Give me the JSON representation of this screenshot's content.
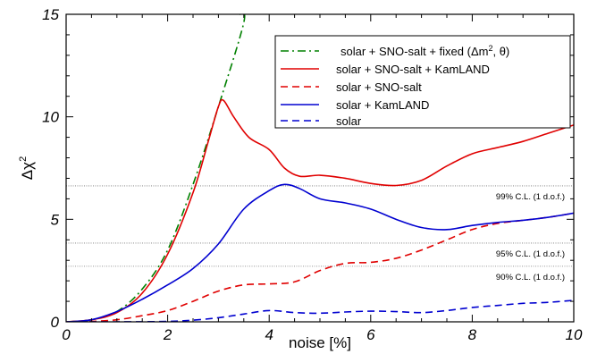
{
  "chart_data": {
    "type": "line",
    "xlabel": "noise [%]",
    "ylabel": "Δχ",
    "ylabel_superscript": "2",
    "xlim": [
      0,
      10
    ],
    "ylim": [
      0,
      15
    ],
    "x_ticks": [
      "0",
      "2",
      "4",
      "6",
      "8",
      "10"
    ],
    "y_ticks": [
      "0",
      "5",
      "10",
      "15"
    ],
    "grid": false,
    "legend_position": "top-right",
    "reference_lines": [
      {
        "label": "99% C.L. (1 d.o.f.)",
        "y": 6.63
      },
      {
        "label": "95% C.L. (1 d.o.f.)",
        "y": 3.84
      },
      {
        "label": "90% C.L. (1 d.o.f.)",
        "y": 2.71
      }
    ],
    "series": [
      {
        "name": "solar + SNO-salt + fixed (Δm², θ)",
        "legend_main": "solar + SNO-salt + fixed (Δm",
        "legend_sup": "2",
        "legend_tail": ", θ)",
        "color": "#008000",
        "dash": "dashdot",
        "x": [
          0,
          0.5,
          1.0,
          1.5,
          2.0,
          2.5,
          3.0,
          3.5,
          3.4
        ],
        "y": [
          0,
          0.1,
          0.5,
          1.6,
          3.5,
          6.7,
          10.5,
          14.6,
          15.0
        ]
      },
      {
        "name": "solar + SNO-salt + KamLAND",
        "color": "#e00000",
        "dash": "solid",
        "x": [
          0,
          0.5,
          1.0,
          1.5,
          2.0,
          2.5,
          2.8,
          3.0,
          3.1,
          3.3,
          3.6,
          4.0,
          4.3,
          4.6,
          5.0,
          5.5,
          6.0,
          6.5,
          7.0,
          7.5,
          8.0,
          8.5,
          9.0,
          9.5,
          10.0
        ],
        "y": [
          0,
          0.1,
          0.45,
          1.4,
          3.3,
          6.3,
          8.8,
          10.5,
          10.8,
          10.0,
          9.0,
          8.4,
          7.5,
          7.1,
          7.15,
          7.0,
          6.75,
          6.65,
          6.9,
          7.6,
          8.2,
          8.5,
          8.8,
          9.2,
          9.6
        ]
      },
      {
        "name": "solar + SNO-salt",
        "color": "#e00000",
        "dash": "dashed",
        "x": [
          0,
          0.5,
          1.0,
          1.5,
          2.0,
          2.5,
          3.0,
          3.5,
          4.0,
          4.5,
          5.0,
          5.5,
          6.0,
          6.5,
          7.0,
          7.5,
          8.0,
          8.5,
          9.0,
          9.5,
          10.0
        ],
        "y": [
          0,
          0.02,
          0.1,
          0.3,
          0.55,
          1.0,
          1.5,
          1.8,
          1.85,
          1.95,
          2.5,
          2.85,
          2.9,
          3.1,
          3.5,
          4.0,
          4.5,
          4.8,
          4.95,
          5.1,
          5.3
        ]
      },
      {
        "name": "solar + KamLAND",
        "color": "#0000d0",
        "dash": "solid",
        "x": [
          0,
          0.5,
          1.0,
          1.5,
          2.0,
          2.5,
          3.0,
          3.5,
          4.0,
          4.3,
          4.6,
          5.0,
          5.5,
          6.0,
          6.5,
          7.0,
          7.5,
          8.0,
          8.5,
          9.0,
          9.5,
          10.0
        ],
        "y": [
          0,
          0.1,
          0.5,
          1.1,
          1.8,
          2.6,
          3.8,
          5.5,
          6.4,
          6.7,
          6.5,
          6.0,
          5.8,
          5.5,
          5.0,
          4.6,
          4.5,
          4.7,
          4.85,
          4.95,
          5.1,
          5.3
        ]
      },
      {
        "name": "solar",
        "color": "#0000d0",
        "dash": "dashed",
        "x": [
          0,
          1.0,
          2.0,
          2.5,
          3.0,
          3.5,
          4.0,
          4.5,
          5.0,
          5.5,
          6.0,
          6.5,
          7.0,
          7.5,
          8.0,
          8.5,
          9.0,
          9.5,
          10.0
        ],
        "y": [
          0,
          0,
          0.02,
          0.08,
          0.2,
          0.38,
          0.55,
          0.45,
          0.42,
          0.48,
          0.52,
          0.5,
          0.45,
          0.55,
          0.7,
          0.8,
          0.9,
          0.95,
          1.05
        ]
      }
    ]
  }
}
